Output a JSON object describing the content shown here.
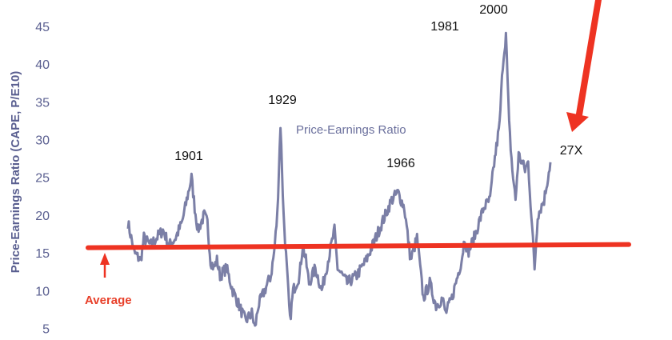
{
  "chart_data": {
    "type": "line",
    "ylabel": "Price-Earnings Ratio (CAPE, P/E10)",
    "ylim": [
      4,
      47
    ],
    "y_ticks": [
      5,
      10,
      15,
      20,
      25,
      30,
      35,
      40,
      45
    ],
    "xlim": [
      1881,
      2015
    ],
    "grid": false,
    "series": [
      {
        "name": "Price-Earnings Ratio",
        "color": "#7b7fa6",
        "x": [
          1881,
          1883,
          1885,
          1886,
          1888,
          1890,
          1892,
          1894,
          1896,
          1898,
          1899,
          1901,
          1902,
          1903,
          1904,
          1905,
          1906,
          1907,
          1908,
          1909,
          1910,
          1912,
          1914,
          1916,
          1918,
          1920,
          1921,
          1922,
          1924,
          1926,
          1927,
          1928,
          1929,
          1930,
          1931,
          1932,
          1933,
          1935,
          1936,
          1937,
          1938,
          1940,
          1942,
          1944,
          1946,
          1947,
          1950,
          1953,
          1956,
          1959,
          1962,
          1964,
          1966,
          1968,
          1970,
          1972,
          1974,
          1976,
          1978,
          1980,
          1981,
          1983,
          1986,
          1987,
          1988,
          1990,
          1993,
          1995,
          1996,
          1998,
          1999,
          2000,
          2001,
          2002,
          2003,
          2004,
          2006,
          2007,
          2008,
          2009,
          2010,
          2012,
          2014
        ],
        "y": [
          19,
          15,
          14,
          17,
          16,
          17,
          18,
          16,
          17,
          19,
          21,
          25,
          21,
          18,
          19,
          20,
          19,
          14,
          13,
          14,
          12,
          13,
          10,
          8,
          6,
          7,
          5,
          8,
          10,
          12,
          15,
          20,
          32,
          20,
          13,
          6,
          10,
          12,
          16,
          14,
          11,
          13,
          10,
          14,
          18,
          13,
          11,
          12,
          14,
          17,
          20,
          22,
          23,
          21,
          14,
          17,
          9,
          11,
          8,
          9,
          7,
          9,
          14,
          17,
          15,
          17,
          21,
          22,
          26,
          32,
          40,
          44,
          32,
          26,
          22,
          28,
          26,
          27,
          20,
          13,
          20,
          22,
          27
        ]
      }
    ],
    "average": {
      "label": "Average",
      "value": 15.8
    },
    "annotations": [
      {
        "text": "1901",
        "x": 1901,
        "y": 25
      },
      {
        "text": "1929",
        "x": 1929,
        "y": 32
      },
      {
        "text": "1966",
        "x": 1966,
        "y": 23
      },
      {
        "text": "1981",
        "x": 1981,
        "y": 7
      },
      {
        "text": "2000",
        "x": 2000,
        "y": 44
      },
      {
        "text": "27X",
        "x": 2014,
        "y": 27
      }
    ]
  }
}
